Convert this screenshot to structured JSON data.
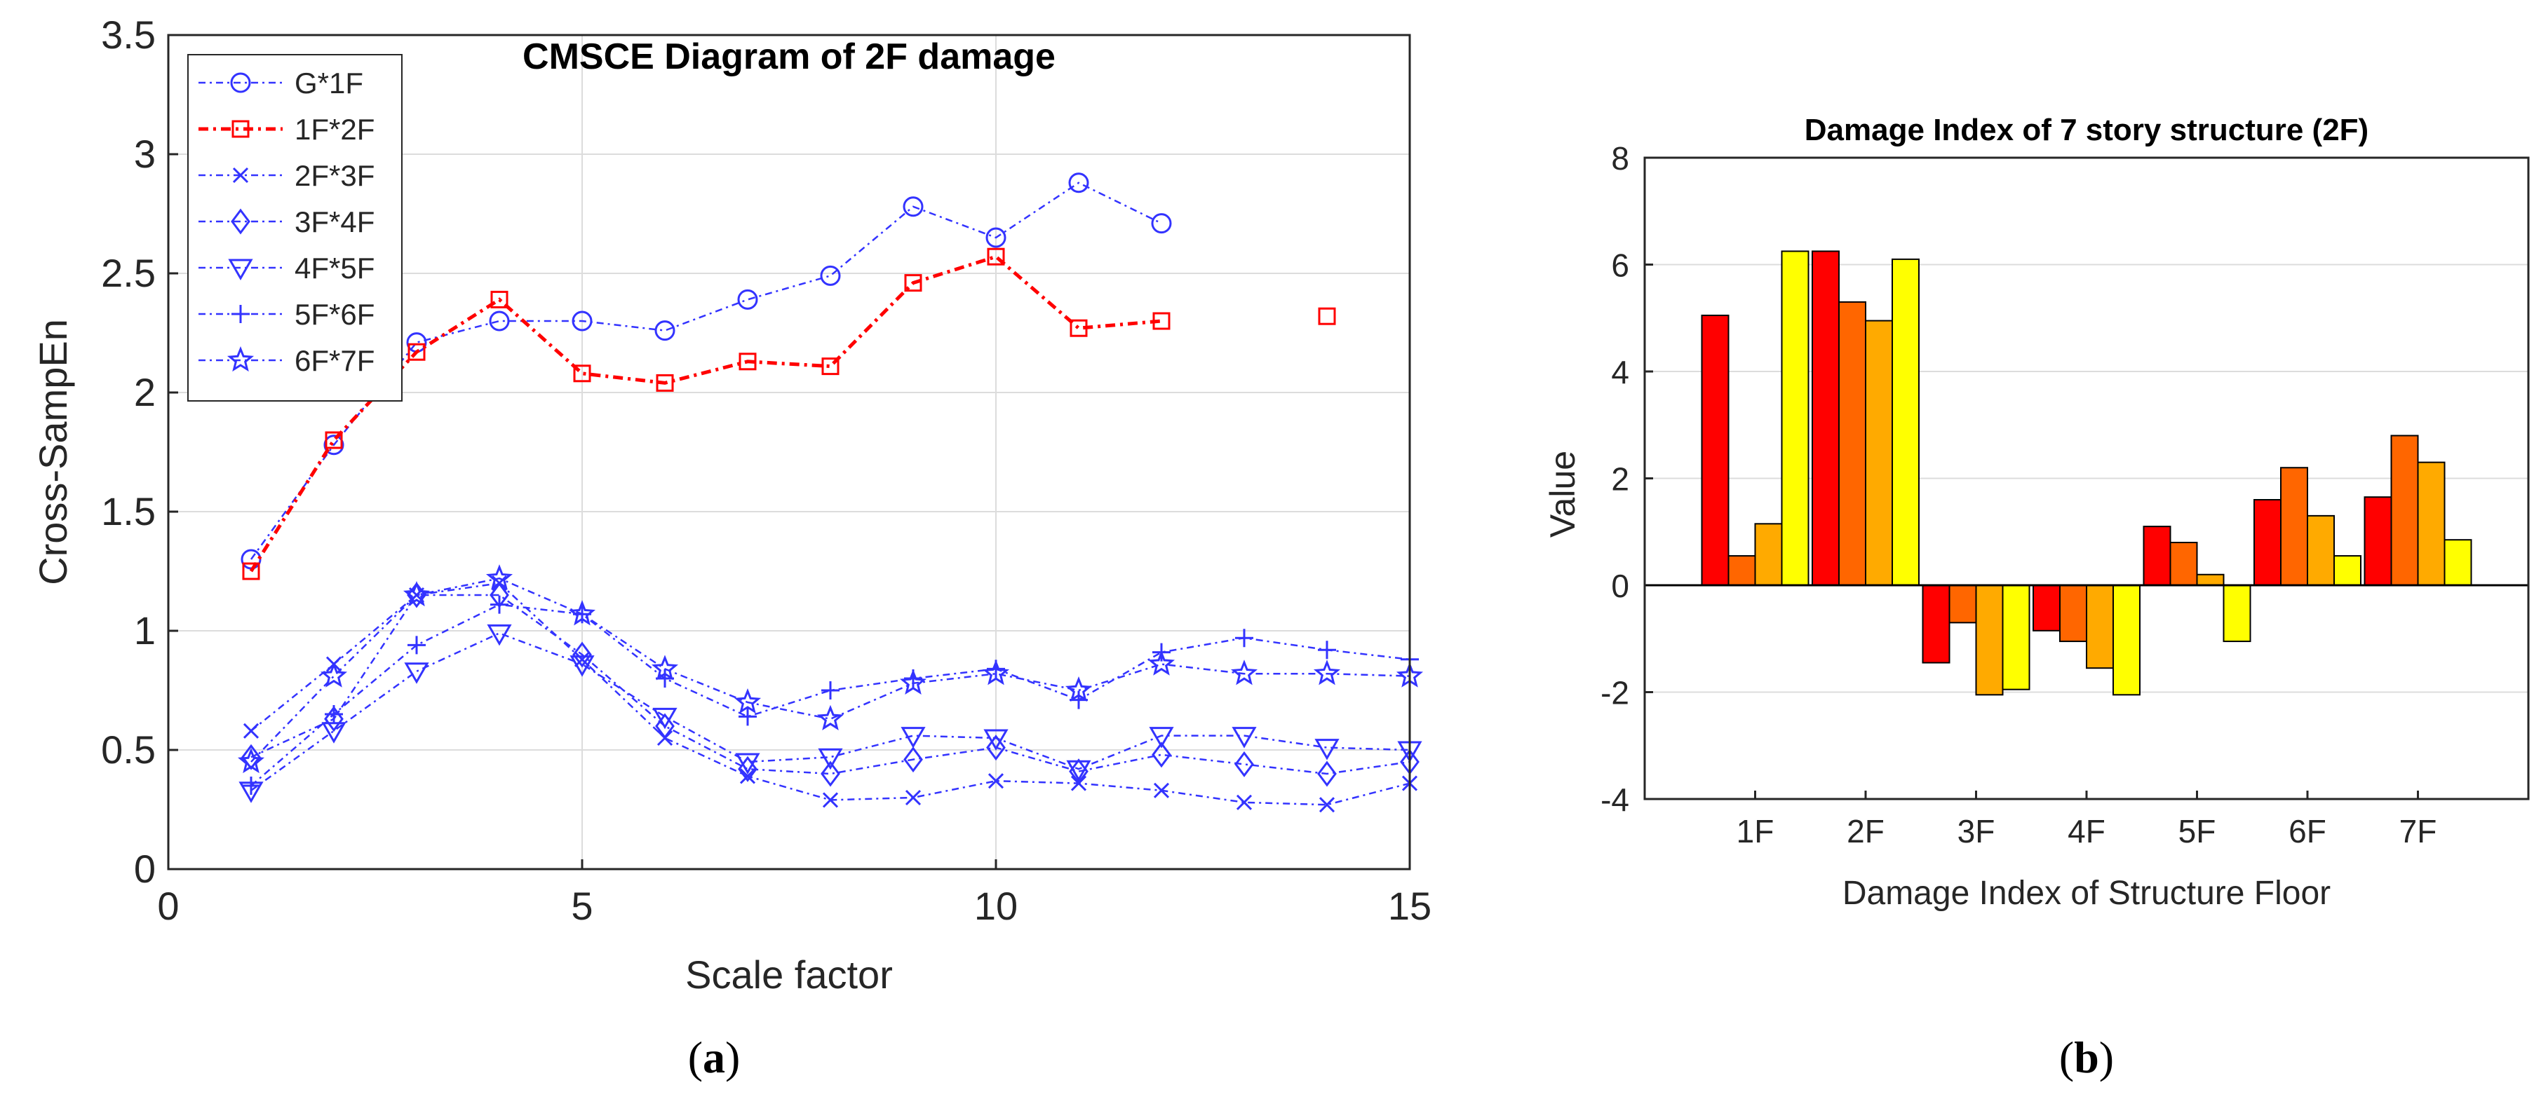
{
  "captions": [
    {
      "open": "(",
      "letter": "a",
      "close": ")"
    },
    {
      "open": "(",
      "letter": "b",
      "close": ")"
    }
  ],
  "chart_data": [
    {
      "type": "line",
      "title": "CMSCE Diagram of 2F damage",
      "xlabel": "Scale factor",
      "ylabel": "Cross-SampEn",
      "xlim": [
        0,
        15
      ],
      "ylim": [
        0,
        3.5
      ],
      "xticks": [
        "0",
        "5",
        "10",
        "15"
      ],
      "yticks": [
        "0",
        "0.5",
        "1",
        "1.5",
        "2",
        "2.5",
        "3",
        "3.5"
      ],
      "grid": true,
      "legend_position": "top-left",
      "x": [
        1,
        2,
        3,
        4,
        5,
        6,
        7,
        8,
        9,
        10,
        11,
        12,
        13,
        14,
        15
      ],
      "series": [
        {
          "name": "G*1F",
          "marker": "circle",
          "color": "#3333ff",
          "values": [
            1.3,
            1.78,
            2.21,
            2.3,
            2.3,
            2.26,
            2.39,
            2.49,
            2.78,
            2.65,
            2.88,
            2.71,
            null,
            null,
            null
          ]
        },
        {
          "name": "1F*2F",
          "marker": "square",
          "color": "#ff0000",
          "values": [
            1.25,
            1.8,
            2.17,
            2.39,
            2.08,
            2.04,
            2.13,
            2.11,
            2.46,
            2.57,
            2.27,
            2.3,
            null,
            2.32,
            null
          ]
        },
        {
          "name": "2F*3F",
          "marker": "x",
          "color": "#3333ff",
          "values": [
            0.58,
            0.86,
            1.15,
            1.2,
            0.88,
            0.55,
            0.39,
            0.29,
            0.3,
            0.37,
            0.36,
            0.33,
            0.28,
            0.27,
            0.36
          ]
        },
        {
          "name": "3F*4F",
          "marker": "diamond",
          "color": "#3333ff",
          "values": [
            0.47,
            0.63,
            1.15,
            1.15,
            0.9,
            0.6,
            0.42,
            0.4,
            0.46,
            0.51,
            0.41,
            0.48,
            0.44,
            0.4,
            0.45
          ]
        },
        {
          "name": "4F*5F",
          "marker": "triangle-down",
          "color": "#3333ff",
          "values": [
            0.33,
            0.58,
            0.83,
            0.99,
            0.86,
            0.64,
            0.45,
            0.47,
            0.56,
            0.55,
            0.42,
            0.56,
            0.56,
            0.51,
            0.5
          ]
        },
        {
          "name": "5F*6F",
          "marker": "plus",
          "color": "#3333ff",
          "values": [
            0.35,
            0.65,
            0.94,
            1.11,
            1.07,
            0.8,
            0.64,
            0.75,
            0.8,
            0.84,
            0.71,
            0.91,
            0.97,
            0.92,
            0.88
          ]
        },
        {
          "name": "6F*7F",
          "marker": "star",
          "color": "#3333ff",
          "values": [
            0.45,
            0.81,
            1.15,
            1.22,
            1.07,
            0.84,
            0.7,
            0.63,
            0.78,
            0.82,
            0.75,
            0.86,
            0.82,
            0.82,
            0.81
          ]
        }
      ]
    },
    {
      "type": "bar",
      "title": "Damage Index of 7 story structure (2F)",
      "xlabel": "Damage Index of Structure Floor",
      "ylabel": "Value",
      "ylim": [
        -4,
        8
      ],
      "yticks": [
        "-4",
        "-2",
        "0",
        "2",
        "4",
        "6",
        "8"
      ],
      "grid": true,
      "categories": [
        "1F",
        "2F",
        "3F",
        "4F",
        "5F",
        "6F",
        "7F"
      ],
      "series_colors": [
        "#ff0000",
        "#ff6600",
        "#ffaa00",
        "#ffff00"
      ],
      "series": [
        {
          "values": [
            5.05,
            6.25,
            -1.45,
            -0.85,
            1.1,
            1.6,
            1.65
          ]
        },
        {
          "values": [
            0.55,
            5.3,
            -0.7,
            -1.05,
            0.8,
            2.2,
            2.8
          ]
        },
        {
          "values": [
            1.15,
            4.95,
            -2.05,
            -1.55,
            0.2,
            1.3,
            2.3
          ]
        },
        {
          "values": [
            6.25,
            6.1,
            -1.95,
            -2.05,
            -1.05,
            0.55,
            0.85
          ]
        }
      ]
    }
  ]
}
